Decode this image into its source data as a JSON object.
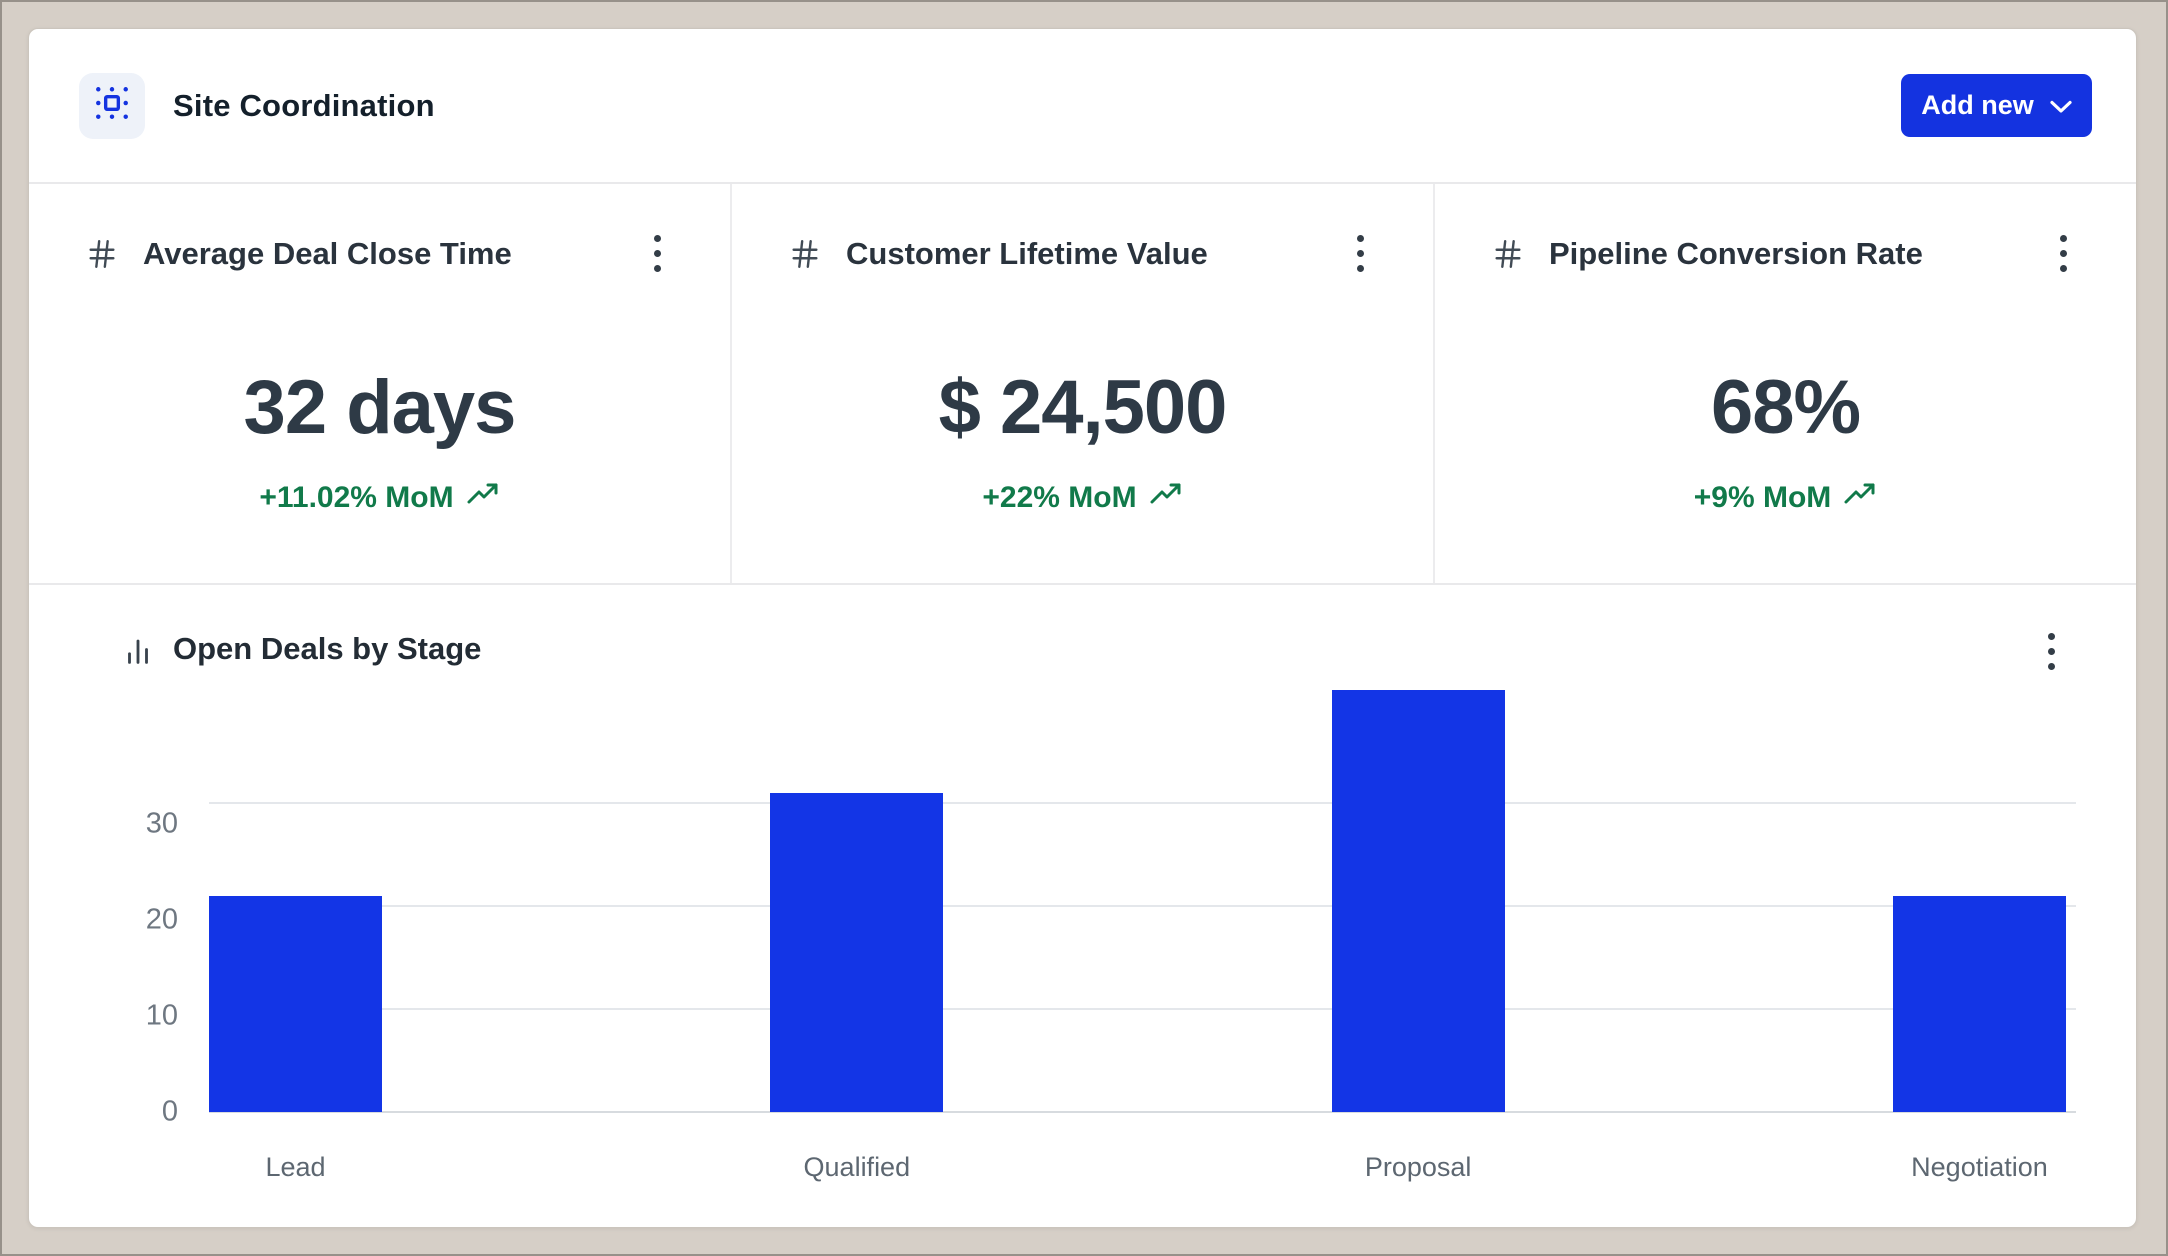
{
  "header": {
    "title": "Site Coordination",
    "add_new_label": "Add new"
  },
  "kpis": [
    {
      "title": "Average Deal Close Time",
      "value": "32 days",
      "trend": "+11.02% MoM"
    },
    {
      "title": "Customer Lifetime Value",
      "value": "$ 24,500",
      "trend": "+22% MoM"
    },
    {
      "title": "Pipeline Conversion Rate",
      "value": "68%",
      "trend": "+9% MoM"
    }
  ],
  "chart": {
    "title": "Open Deals by Stage"
  },
  "chart_data": {
    "type": "bar",
    "title": "Open Deals by Stage",
    "categories": [
      "Lead",
      "Qualified",
      "Proposal",
      "Negotiation"
    ],
    "values": [
      21,
      31,
      41,
      21
    ],
    "yticks": [
      0,
      10,
      20,
      30
    ],
    "ylim": [
      0,
      42
    ],
    "grid": true,
    "legend": false,
    "bar_color": "#1335e6"
  },
  "icons": {
    "logo": "selection-frame",
    "kpi": "hash",
    "chart": "bar-chart",
    "menu": "kebab-vertical",
    "trend": "trending-up",
    "button": "chevron-down"
  },
  "colors": {
    "accent_blue": "#1433e0",
    "bar_blue": "#1335e6",
    "trend_green": "#117a4a",
    "value_dark": "#2e3a46",
    "window_background": "#d6cfc7"
  }
}
